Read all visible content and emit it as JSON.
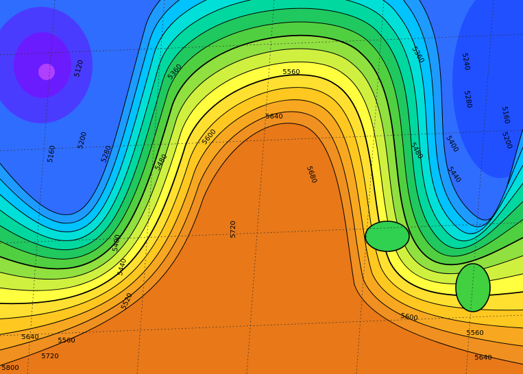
{
  "contour_labels": [
    "5120",
    "5160",
    "5200",
    "5280",
    "5360",
    "5480",
    "5600",
    "5560",
    "5640",
    "5360",
    "5240",
    "5280",
    "5160",
    "5200",
    "5400",
    "5480",
    "5440",
    "5680",
    "5720",
    "5400",
    "5440",
    "5520",
    "5560",
    "5640",
    "5720",
    "5800",
    "5600",
    "5560",
    "5640"
  ]
}
